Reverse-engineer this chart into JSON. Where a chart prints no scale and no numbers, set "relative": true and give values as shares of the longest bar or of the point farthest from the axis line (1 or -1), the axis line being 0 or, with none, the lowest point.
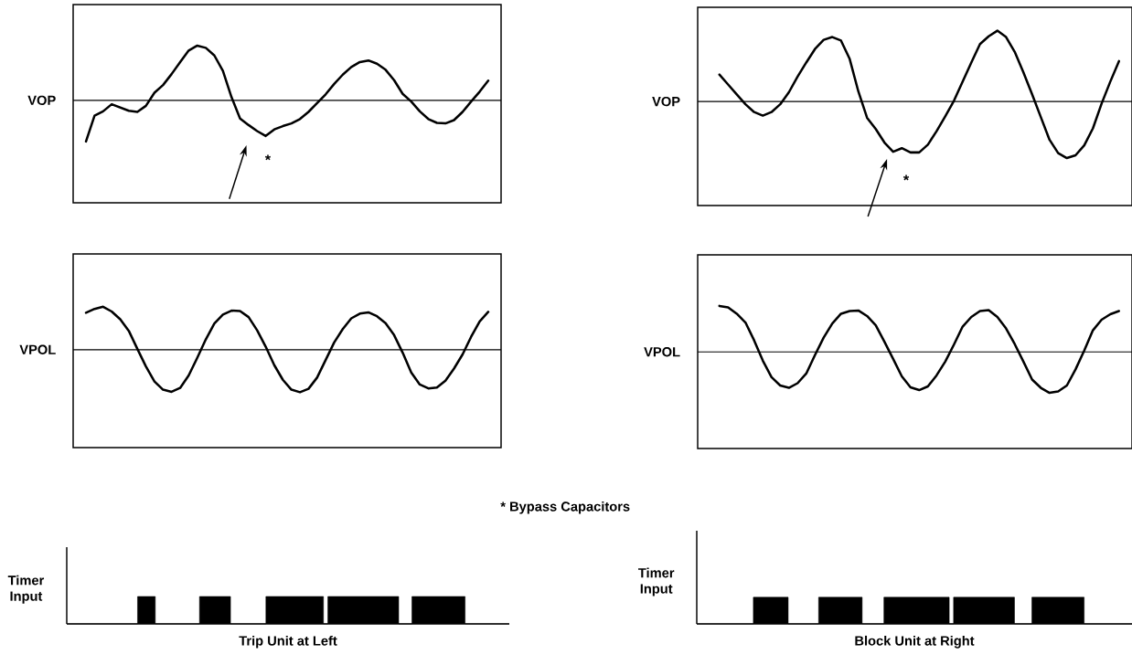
{
  "chart_data": [
    {
      "type": "line",
      "relative": true,
      "ylabel": "VOP",
      "tick_labels": false,
      "color": "#000000",
      "categories": [
        null,
        null,
        null,
        null,
        null,
        null,
        null,
        null,
        null,
        null,
        null,
        null,
        null,
        null,
        null,
        null,
        null,
        null,
        null,
        null,
        null,
        null,
        null,
        null,
        null,
        null,
        null,
        null,
        null,
        null,
        null,
        null,
        null,
        null,
        null,
        null,
        null,
        null,
        null,
        null,
        null,
        null,
        null,
        null,
        null,
        null,
        null,
        null,
        null,
        null
      ],
      "values": [
        null,
        -0.75,
        -0.28,
        -0.2,
        -0.07,
        -0.13,
        -0.19,
        -0.21,
        -0.1,
        0.14,
        0.28,
        0.48,
        0.7,
        0.91,
        1,
        0.96,
        0.82,
        0.54,
        0.06,
        -0.33,
        -0.45,
        -0.56,
        -0.65,
        -0.53,
        -0.47,
        -0.42,
        -0.34,
        -0.21,
        -0.05,
        0.11,
        0.3,
        0.47,
        0.61,
        0.7,
        0.73,
        0.67,
        0.56,
        0.37,
        0.12,
        -0.02,
        -0.2,
        -0.34,
        -0.41,
        -0.42,
        -0.36,
        -0.21,
        -0.02,
        0.16,
        0.36,
        null
      ],
      "ref_lines": [
        {
          "axis": "y",
          "value": 0
        }
      ],
      "annotations": [
        "*"
      ]
    },
    {
      "type": "line",
      "relative": true,
      "ylabel": "VOP",
      "tick_labels": false,
      "color": "#000000",
      "categories": [
        null,
        null,
        null,
        null,
        null,
        null,
        null,
        null,
        null,
        null,
        null,
        null,
        null,
        null,
        null,
        null,
        null,
        null,
        null,
        null,
        null,
        null,
        null,
        null,
        null,
        null,
        null,
        null,
        null,
        null,
        null,
        null,
        null,
        null,
        null,
        null,
        null,
        null,
        null,
        null,
        null,
        null,
        null,
        null,
        null,
        null,
        null,
        null,
        null,
        null
      ],
      "values": [
        null,
        null,
        0.38,
        0.24,
        0.1,
        -0.04,
        -0.15,
        -0.2,
        -0.15,
        -0.04,
        0.13,
        0.35,
        0.55,
        0.74,
        0.87,
        0.91,
        0.86,
        0.6,
        0.14,
        -0.23,
        -0.39,
        -0.58,
        -0.71,
        -0.66,
        -0.72,
        -0.72,
        -0.61,
        -0.42,
        -0.21,
        0.01,
        0.28,
        0.55,
        0.81,
        0.92,
        1,
        0.91,
        0.7,
        0.41,
        0.1,
        -0.22,
        -0.54,
        -0.73,
        -0.8,
        -0.76,
        -0.62,
        -0.38,
        -0.03,
        0.28,
        0.57,
        null
      ],
      "ref_lines": [
        {
          "axis": "y",
          "value": 0
        }
      ],
      "annotations": [
        "*"
      ]
    },
    {
      "type": "line",
      "relative": true,
      "ylabel": "VPOL",
      "tick_labels": false,
      "color": "#000000",
      "categories": [
        null,
        null,
        null,
        null,
        null,
        null,
        null,
        null,
        null,
        null,
        null,
        null,
        null,
        null,
        null,
        null,
        null,
        null,
        null,
        null,
        null,
        null,
        null,
        null,
        null,
        null,
        null,
        null,
        null,
        null,
        null,
        null,
        null,
        null,
        null,
        null,
        null,
        null,
        null,
        null,
        null,
        null,
        null,
        null,
        null,
        null,
        null,
        null,
        null,
        null
      ],
      "values": [
        null,
        0.86,
        0.95,
        1,
        0.89,
        0.71,
        0.44,
        0.02,
        -0.39,
        -0.74,
        -0.93,
        -0.98,
        -0.89,
        -0.6,
        -0.19,
        0.24,
        0.61,
        0.82,
        0.91,
        0.9,
        0.76,
        0.45,
        0.07,
        -0.36,
        -0.7,
        -0.93,
        -0.99,
        -0.91,
        -0.65,
        -0.24,
        0.17,
        0.48,
        0.73,
        0.84,
        0.87,
        0.78,
        0.62,
        0.34,
        -0.07,
        -0.53,
        -0.81,
        -0.9,
        -0.88,
        -0.72,
        -0.44,
        -0.11,
        0.3,
        0.66,
        0.88,
        null
      ],
      "ref_lines": [
        {
          "axis": "y",
          "value": 0
        }
      ],
      "annotations": [
        "* Bypass Capacitors"
      ]
    },
    {
      "type": "line",
      "relative": true,
      "ylabel": "VPOL",
      "tick_labels": false,
      "color": "#000000",
      "categories": [
        null,
        null,
        null,
        null,
        null,
        null,
        null,
        null,
        null,
        null,
        null,
        null,
        null,
        null,
        null,
        null,
        null,
        null,
        null,
        null,
        null,
        null,
        null,
        null,
        null,
        null,
        null,
        null,
        null,
        null,
        null,
        null,
        null,
        null,
        null,
        null,
        null,
        null,
        null,
        null,
        null,
        null,
        null,
        null,
        null,
        null,
        null,
        null,
        null,
        null
      ],
      "values": [
        null,
        null,
        1,
        0.97,
        0.83,
        0.64,
        0.25,
        -0.19,
        -0.55,
        -0.73,
        -0.78,
        -0.68,
        -0.47,
        -0.07,
        0.31,
        0.62,
        0.83,
        0.89,
        0.9,
        0.78,
        0.58,
        0.22,
        -0.15,
        -0.53,
        -0.77,
        -0.83,
        -0.75,
        -0.51,
        -0.21,
        0.16,
        0.55,
        0.76,
        0.89,
        0.91,
        0.76,
        0.51,
        0.17,
        -0.21,
        -0.6,
        -0.78,
        -0.89,
        -0.86,
        -0.73,
        -0.38,
        0.03,
        0.47,
        0.7,
        0.82,
        0.89,
        null
      ],
      "ref_lines": [
        {
          "axis": "y",
          "value": 0
        }
      ]
    },
    {
      "type": "area",
      "relative": true,
      "ylabel": "Timer Input",
      "xlabel": "Trip Unit at Left",
      "tick_labels": false,
      "color": "#000000",
      "categories": [
        null,
        null,
        null,
        null,
        null,
        null,
        null,
        null,
        null,
        null,
        null,
        null,
        null,
        null,
        null,
        null,
        null,
        null,
        null,
        null,
        null,
        null,
        null,
        null,
        null,
        null,
        null,
        null,
        null,
        null,
        null,
        null,
        null,
        null,
        null,
        null,
        null,
        null,
        null,
        null,
        null,
        null,
        null,
        null,
        null,
        null,
        null,
        null,
        null,
        null,
        null,
        null,
        null,
        null,
        null,
        null,
        null,
        null,
        null,
        null,
        null,
        null,
        null,
        null,
        null,
        null,
        null,
        null,
        null,
        null,
        null,
        null,
        null,
        null,
        null,
        null,
        null,
        null,
        null,
        null,
        null,
        null,
        null,
        null,
        null,
        null,
        null,
        null,
        null,
        null,
        null,
        null,
        null,
        null,
        null,
        null,
        null,
        null,
        null,
        null
      ],
      "values": [
        0,
        0,
        0,
        0,
        0,
        0,
        0,
        0,
        0,
        0,
        0,
        0,
        0,
        0,
        0,
        0,
        1,
        1,
        1,
        1,
        0,
        0,
        0,
        0,
        0,
        0,
        0,
        0,
        0,
        0,
        1,
        1,
        1,
        1,
        1,
        1,
        1,
        0,
        0,
        0,
        0,
        0,
        0,
        0,
        0,
        1,
        1,
        1,
        1,
        1,
        1,
        1,
        1,
        1,
        1,
        1,
        1,
        1,
        0,
        1,
        1,
        1,
        1,
        1,
        1,
        1,
        1,
        1,
        1,
        1,
        1,
        1,
        1,
        1,
        1,
        0,
        0,
        0,
        1,
        1,
        1,
        1,
        1,
        1,
        1,
        1,
        1,
        1,
        1,
        1,
        0,
        0,
        0,
        0,
        0,
        0,
        0,
        0,
        0,
        0
      ]
    },
    {
      "type": "area",
      "relative": true,
      "ylabel": "Timer Input",
      "xlabel": "Block Unit at Right",
      "tick_labels": false,
      "color": "#000000",
      "categories": [
        null,
        null,
        null,
        null,
        null,
        null,
        null,
        null,
        null,
        null,
        null,
        null,
        null,
        null,
        null,
        null,
        null,
        null,
        null,
        null,
        null,
        null,
        null,
        null,
        null,
        null,
        null,
        null,
        null,
        null,
        null,
        null,
        null,
        null,
        null,
        null,
        null,
        null,
        null,
        null,
        null,
        null,
        null,
        null,
        null,
        null,
        null,
        null,
        null,
        null,
        null,
        null,
        null,
        null,
        null,
        null,
        null,
        null,
        null,
        null,
        null,
        null,
        null,
        null,
        null,
        null,
        null,
        null,
        null,
        null,
        null,
        null,
        null,
        null,
        null,
        null,
        null,
        null,
        null,
        null,
        null,
        null,
        null,
        null,
        null,
        null,
        null,
        null,
        null,
        null,
        null,
        null,
        null,
        null,
        null,
        null,
        null,
        null,
        null,
        null
      ],
      "values": [
        0,
        0,
        0,
        0,
        0,
        0,
        0,
        0,
        0,
        0,
        0,
        0,
        0,
        1,
        1,
        1,
        1,
        1,
        1,
        1,
        1,
        0,
        0,
        0,
        0,
        0,
        0,
        0,
        1,
        1,
        1,
        1,
        1,
        1,
        1,
        1,
        1,
        1,
        0,
        0,
        0,
        0,
        0,
        1,
        1,
        1,
        1,
        1,
        1,
        1,
        1,
        1,
        1,
        1,
        1,
        1,
        1,
        1,
        0,
        1,
        1,
        1,
        1,
        1,
        1,
        1,
        1,
        1,
        1,
        1,
        1,
        1,
        1,
        0,
        0,
        0,
        0,
        1,
        1,
        1,
        1,
        1,
        1,
        1,
        1,
        1,
        1,
        1,
        1,
        0,
        0,
        0,
        0,
        0,
        0,
        0,
        0,
        0,
        0,
        0
      ]
    }
  ]
}
